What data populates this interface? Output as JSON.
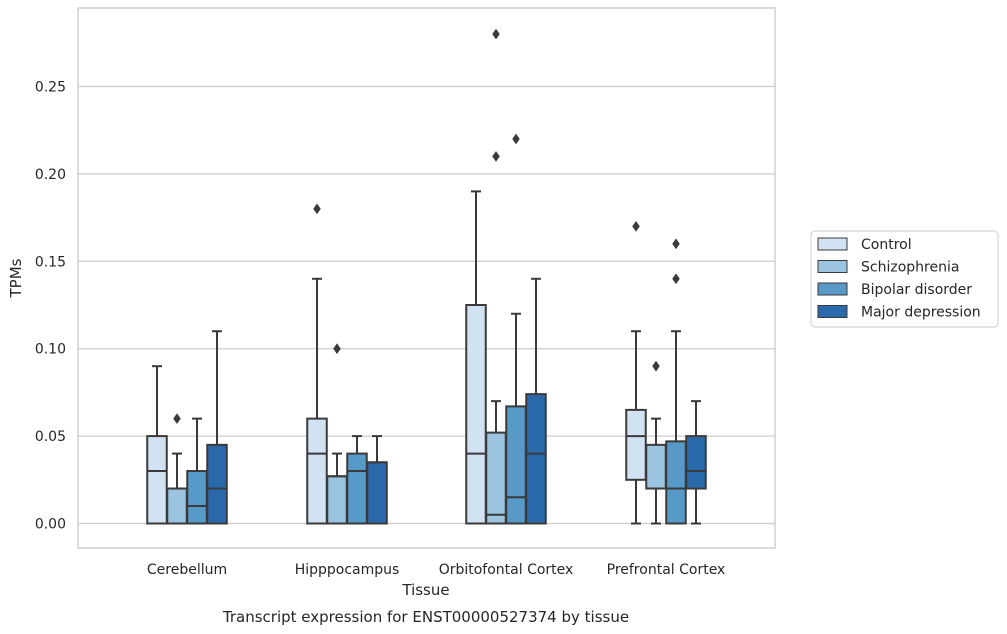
{
  "chart_data": {
    "type": "boxplot",
    "title": "",
    "xlabel": "Tissue",
    "ylabel": "TPMs",
    "caption": "Transcript expression for ENST00000527374 by tissue",
    "ylim": [
      -0.013,
      0.295
    ],
    "yticks": [
      0.0,
      0.05,
      0.1,
      0.15,
      0.2,
      0.25
    ],
    "ytick_labels": [
      "0.00",
      "0.05",
      "0.10",
      "0.15",
      "0.20",
      "0.25"
    ],
    "grid": "horizontal",
    "legend_position": "right",
    "categories": [
      "Cerebellum",
      "Hipppocampus",
      "Orbitofontal Cortex",
      "Prefrontal Cortex"
    ],
    "series": [
      {
        "name": "Control",
        "color": "#d1e2f2",
        "boxes": [
          {
            "whislo": 0.0,
            "q1": 0.0,
            "med": 0.03,
            "q3": 0.05,
            "whishi": 0.09,
            "fliers": []
          },
          {
            "whislo": 0.0,
            "q1": 0.0,
            "med": 0.04,
            "q3": 0.06,
            "whishi": 0.14,
            "fliers": [
              0.18
            ]
          },
          {
            "whislo": 0.0,
            "q1": 0.0,
            "med": 0.04,
            "q3": 0.125,
            "whishi": 0.19,
            "fliers": []
          },
          {
            "whislo": 0.0,
            "q1": 0.025,
            "med": 0.05,
            "q3": 0.065,
            "whishi": 0.11,
            "fliers": [
              0.17
            ]
          }
        ]
      },
      {
        "name": "Schizophrenia",
        "color": "#9ac4df",
        "boxes": [
          {
            "whislo": 0.0,
            "q1": 0.0,
            "med": 0.02,
            "q3": 0.02,
            "whishi": 0.04,
            "fliers": [
              0.06
            ]
          },
          {
            "whislo": 0.0,
            "q1": 0.0,
            "med": 0.027,
            "q3": 0.027,
            "whishi": 0.04,
            "fliers": [
              0.1
            ]
          },
          {
            "whislo": 0.0,
            "q1": 0.0,
            "med": 0.005,
            "q3": 0.052,
            "whishi": 0.07,
            "fliers": [
              0.21,
              0.28
            ]
          },
          {
            "whislo": 0.0,
            "q1": 0.02,
            "med": 0.02,
            "q3": 0.045,
            "whishi": 0.06,
            "fliers": [
              0.09
            ]
          }
        ]
      },
      {
        "name": "Bipolar disorder",
        "color": "#5799c7",
        "boxes": [
          {
            "whislo": 0.0,
            "q1": 0.0,
            "med": 0.01,
            "q3": 0.03,
            "whishi": 0.06,
            "fliers": []
          },
          {
            "whislo": 0.0,
            "q1": 0.0,
            "med": 0.03,
            "q3": 0.04,
            "whishi": 0.05,
            "fliers": []
          },
          {
            "whislo": 0.0,
            "q1": 0.0,
            "med": 0.015,
            "q3": 0.067,
            "whishi": 0.12,
            "fliers": [
              0.22
            ]
          },
          {
            "whislo": 0.0,
            "q1": 0.0,
            "med": 0.02,
            "q3": 0.047,
            "whishi": 0.11,
            "fliers": [
              0.14,
              0.16
            ]
          }
        ]
      },
      {
        "name": "Major depression",
        "color": "#2a6aab",
        "boxes": [
          {
            "whislo": 0.0,
            "q1": 0.0,
            "med": 0.02,
            "q3": 0.045,
            "whishi": 0.11,
            "fliers": []
          },
          {
            "whislo": 0.0,
            "q1": 0.0,
            "med": 0.035,
            "q3": 0.035,
            "whishi": 0.05,
            "fliers": []
          },
          {
            "whislo": 0.0,
            "q1": 0.0,
            "med": 0.04,
            "q3": 0.074,
            "whishi": 0.14,
            "fliers": []
          },
          {
            "whislo": 0.0,
            "q1": 0.02,
            "med": 0.03,
            "q3": 0.05,
            "whishi": 0.07,
            "fliers": []
          }
        ]
      }
    ]
  },
  "style": {
    "edge_color": "#3a3a3a",
    "grid_color": "#cccccc",
    "frame_color": "#c8c8c8",
    "text_color": "#262626"
  }
}
